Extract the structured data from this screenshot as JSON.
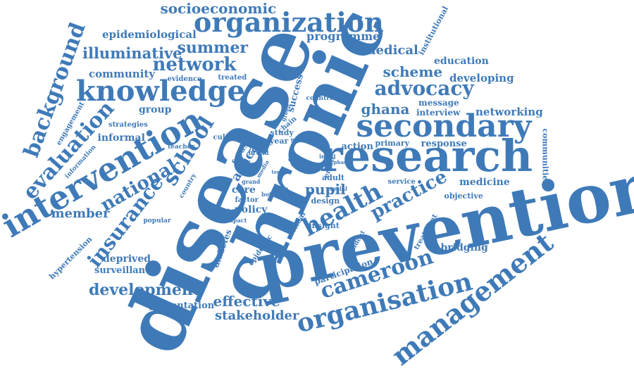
{
  "color": "#3f7ab8",
  "words": [
    "disease",
    "chronic",
    "prevention",
    "research",
    "secondary",
    "knowledge",
    "intervention",
    "organization",
    "management",
    "organisation",
    "cameroon",
    "health",
    "evaluation",
    "background",
    "insurance",
    "advocacy",
    "practice",
    "network",
    "summer",
    "school",
    "national",
    "development",
    "illuminative",
    "socioeconomic",
    "medical",
    "scheme",
    "ghana",
    "pupil",
    "member",
    "effective",
    "stakeholder",
    "networking",
    "developing",
    "epidemiological",
    "programme",
    "community",
    "education",
    "group",
    "policy",
    "care",
    "medicine",
    "bridging",
    "surveillance",
    "deprived",
    "presentation",
    "action",
    "response",
    "message",
    "interview",
    "africa",
    "diabetes",
    "hypertension",
    "participation",
    "institutional",
    "communities",
    "success",
    "informal",
    "engagement",
    "strategies",
    "information",
    "primary",
    "study",
    "year",
    "staff",
    "service",
    "objective",
    "adult",
    "design",
    "insight",
    "critical",
    "focus",
    "factor",
    "email",
    "epidemic",
    "treatment",
    "student",
    "popular",
    "impact",
    "respect",
    "country",
    "teacher",
    "culture",
    "broad",
    "chain",
    "green",
    "evidence",
    "treated",
    "countrie",
    "area",
    "depth",
    "input",
    "grand",
    "bottle",
    "band",
    "model",
    "social",
    "phase",
    "old",
    "term",
    "media",
    "staff"
  ]
}
